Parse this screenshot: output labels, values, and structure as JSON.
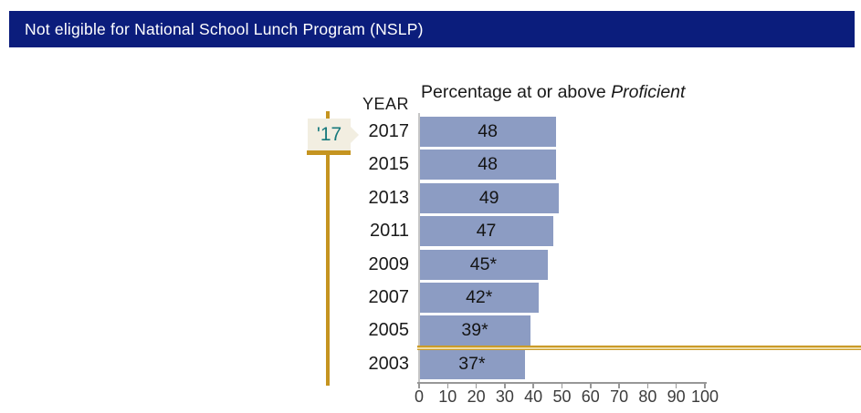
{
  "header": {
    "title": "Not eligible for National School Lunch Program (NSLP)"
  },
  "slider": {
    "handle_label": "'17",
    "selected_year": "2017"
  },
  "colors": {
    "header_bg": "#0b1d7c",
    "header_fg": "#ffffff",
    "bar_fill": "#8c9cc3",
    "slider_gold": "#c59420",
    "flag_bg": "#f2eee1",
    "flag_fg": "#17797c",
    "reference_line_gold": "#cb9b28",
    "axis_gray": "#979797"
  },
  "chart_data": {
    "type": "bar",
    "orientation": "horizontal",
    "title_prefix": "Percentage at or above ",
    "title_italic": "Proficient",
    "year_axis_label": "YEAR",
    "categories": [
      "2017",
      "2015",
      "2013",
      "2011",
      "2009",
      "2007",
      "2005",
      "2003"
    ],
    "values": [
      48,
      48,
      49,
      47,
      45,
      42,
      39,
      37
    ],
    "bar_labels": [
      "48",
      "48",
      "49",
      "47",
      "45*",
      "42*",
      "39*",
      "37*"
    ],
    "xlim": [
      0,
      100
    ],
    "xticks": [
      0,
      10,
      20,
      30,
      40,
      50,
      60,
      70,
      80,
      90,
      100
    ],
    "grid": false,
    "legend": "none",
    "bar_color": "#8c9cc3",
    "reference_line": {
      "position": "between 2005 and 2003 rows",
      "color": "#cb9b28",
      "extends_to_right_edge": true
    }
  }
}
